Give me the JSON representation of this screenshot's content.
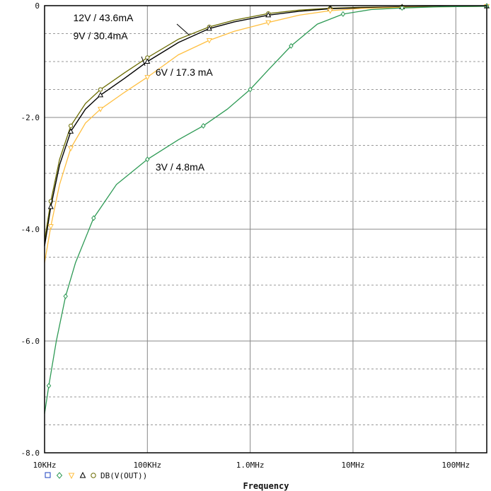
{
  "chart_data": {
    "type": "line",
    "title": "",
    "xlabel": "Frequency",
    "ylabel": "",
    "x_scale": "log",
    "xlim": [
      10000,
      200000000
    ],
    "ylim": [
      -8.0,
      0
    ],
    "grid": true,
    "x_tick_values": [
      10000,
      100000,
      1000000,
      10000000,
      100000000
    ],
    "x_tick_labels": [
      "10KHz",
      "100KHz",
      "1.0MHz",
      "10MHz",
      "100MHz"
    ],
    "y_tick_values": [
      0,
      -2.0,
      -4.0,
      -6.0,
      -8.0
    ],
    "y_tick_labels": [
      "0",
      "-2.0",
      "-4.0",
      "-6.0",
      "-8.0"
    ],
    "legend": {
      "label": "DB(V(OUT))",
      "placement": "bottom-left"
    },
    "series": [
      {
        "name": "12V / 43.6mA",
        "color": "#6b6b00",
        "marker": "circle",
        "x": [
          10000,
          11500,
          14000,
          18000,
          25000,
          35000,
          60000,
          100000,
          200000,
          400000,
          700000,
          1500000,
          3000000,
          6000000,
          12000000,
          30000000,
          70000000,
          200000000
        ],
        "y": [
          -4.2,
          -3.5,
          -2.75,
          -2.15,
          -1.75,
          -1.5,
          -1.2,
          -0.93,
          -0.6,
          -0.38,
          -0.26,
          -0.14,
          -0.08,
          -0.045,
          -0.03,
          -0.02,
          -0.012,
          -0.008
        ]
      },
      {
        "name": "9V / 30.4mA",
        "color": "#000000",
        "marker": "triangle",
        "x": [
          10000,
          11500,
          14000,
          18000,
          25000,
          35000,
          60000,
          100000,
          200000,
          400000,
          700000,
          1500000,
          3000000,
          6000000,
          12000000,
          30000000,
          70000000,
          200000000
        ],
        "y": [
          -4.3,
          -3.6,
          -2.85,
          -2.25,
          -1.85,
          -1.6,
          -1.3,
          -1.0,
          -0.66,
          -0.41,
          -0.29,
          -0.17,
          -0.1,
          -0.055,
          -0.038,
          -0.025,
          -0.015,
          -0.01
        ]
      },
      {
        "name": "6V / 17.3 mA",
        "color": "#ffbf40",
        "marker": "triangle-down",
        "x": [
          10000,
          11500,
          14000,
          18000,
          25000,
          35000,
          60000,
          100000,
          200000,
          400000,
          700000,
          1500000,
          3000000,
          6000000,
          12000000,
          30000000,
          70000000,
          200000000
        ],
        "y": [
          -4.6,
          -3.95,
          -3.2,
          -2.55,
          -2.1,
          -1.85,
          -1.55,
          -1.28,
          -0.88,
          -0.62,
          -0.46,
          -0.3,
          -0.17,
          -0.09,
          -0.05,
          -0.03,
          -0.02,
          -0.012
        ]
      },
      {
        "name": "3V / 4.8mA",
        "color": "#2e9a55",
        "marker": "diamond",
        "x": [
          10000,
          11000,
          13000,
          16000,
          20000,
          30000,
          50000,
          100000,
          200000,
          350000,
          600000,
          1000000,
          1500000,
          2500000,
          4500000,
          8000000,
          15000000,
          30000000,
          70000000,
          200000000
        ],
        "y": [
          -7.3,
          -6.8,
          -6.0,
          -5.2,
          -4.6,
          -3.8,
          -3.2,
          -2.75,
          -2.4,
          -2.15,
          -1.85,
          -1.5,
          -1.15,
          -0.72,
          -0.33,
          -0.15,
          -0.07,
          -0.04,
          -0.02,
          -0.01
        ]
      }
    ],
    "annotations": [
      {
        "text": "12V / 43.6mA",
        "x": 19000,
        "y": -0.28
      },
      {
        "text": "9V / 30.4mA",
        "x": 19000,
        "y": -0.6
      },
      {
        "text": "6V / 17.3 mA",
        "x": 120000,
        "y": -1.25
      },
      {
        "text": "3V / 4.8mA",
        "x": 120000,
        "y": -2.95
      }
    ]
  }
}
